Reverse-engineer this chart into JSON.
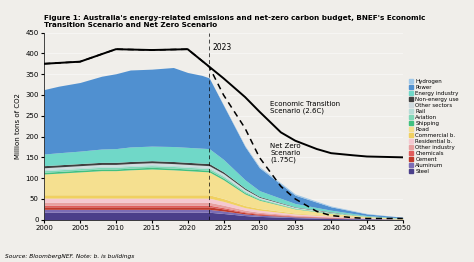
{
  "title": "Figure 1: Australia's energy-related emissions and net-zero carbon budget, BNEF's Economic\nTransition Scenario and Net Zero Scenario",
  "ylabel": "Million tons of CO2",
  "source": "Source: BloombergNEF. Note: b. is buildings",
  "xlim": [
    2000,
    2050
  ],
  "ylim": [
    0,
    450
  ],
  "yticks": [
    0,
    50,
    100,
    150,
    200,
    250,
    300,
    350,
    400,
    450
  ],
  "xticks": [
    2000,
    2005,
    2010,
    2015,
    2020,
    2025,
    2030,
    2035,
    2040,
    2045,
    2050
  ],
  "annotation_2023": "2023",
  "annotation_econ": "Economic Transition\nScenario (2.6C)",
  "annotation_nz": "Net Zero\nScenario\n(1.75C)",
  "bg_color": "#f0eeea",
  "layers_order_bottom_to_top": [
    {
      "name": "Steel",
      "color": "#4a3f8a"
    },
    {
      "name": "Aluminum",
      "color": "#7b6db5"
    },
    {
      "name": "Cement",
      "color": "#c0392b"
    },
    {
      "name": "Chemicals",
      "color": "#e05c5c"
    },
    {
      "name": "Other industry",
      "color": "#e8a0a0"
    },
    {
      "name": "Residential b.",
      "color": "#f5c8d0"
    },
    {
      "name": "Commercial b.",
      "color": "#f0d060"
    },
    {
      "name": "Road",
      "color": "#f5e090"
    },
    {
      "name": "Shipping",
      "color": "#40c080"
    },
    {
      "name": "Aviation",
      "color": "#80d8b8"
    },
    {
      "name": "Rail",
      "color": "#b8ddd8"
    },
    {
      "name": "Other sectors",
      "color": "#d0dce0"
    },
    {
      "name": "Non-energy use",
      "color": "#404040"
    },
    {
      "name": "Energy industry",
      "color": "#70d8c8"
    },
    {
      "name": "Power",
      "color": "#5090d0"
    },
    {
      "name": "Hydrogen",
      "color": "#a0c8e8"
    }
  ],
  "x_stack": [
    2000,
    2002,
    2005,
    2008,
    2010,
    2012,
    2015,
    2018,
    2020,
    2022,
    2023,
    2025,
    2028,
    2030,
    2035,
    2040,
    2045,
    2050
  ],
  "stack_data": {
    "Steel": [
      18,
      18,
      18,
      18,
      18,
      18,
      18,
      18,
      18,
      18,
      18,
      15,
      10,
      8,
      5,
      3,
      2,
      1
    ],
    "Aluminum": [
      7,
      7,
      7,
      7,
      7,
      7,
      7,
      7,
      7,
      7,
      7,
      6,
      4,
      3,
      2,
      1,
      1,
      0
    ],
    "Cement": [
      6,
      6,
      6,
      6,
      6,
      6,
      6,
      6,
      6,
      6,
      6,
      5,
      3,
      2,
      1,
      1,
      0,
      0
    ],
    "Chemicals": [
      4,
      4,
      4,
      4,
      4,
      4,
      4,
      4,
      4,
      4,
      4,
      3,
      2,
      2,
      1,
      1,
      0,
      0
    ],
    "Other industry": [
      7,
      7,
      7,
      7,
      7,
      7,
      7,
      7,
      7,
      7,
      7,
      6,
      4,
      3,
      2,
      1,
      1,
      0
    ],
    "Residential b.": [
      10,
      10,
      10,
      10,
      10,
      10,
      10,
      10,
      10,
      10,
      10,
      9,
      6,
      5,
      3,
      2,
      1,
      0
    ],
    "Commercial b.": [
      8,
      8,
      8,
      8,
      8,
      8,
      8,
      8,
      8,
      8,
      8,
      7,
      5,
      4,
      2,
      1,
      0,
      0
    ],
    "Road": [
      50,
      52,
      55,
      58,
      58,
      60,
      62,
      60,
      58,
      56,
      55,
      45,
      28,
      20,
      10,
      5,
      3,
      2
    ],
    "Shipping": [
      4,
      4,
      4,
      4,
      4,
      4,
      4,
      4,
      4,
      4,
      4,
      4,
      3,
      2,
      1,
      1,
      0,
      0
    ],
    "Aviation": [
      4,
      4,
      4,
      4,
      4,
      4,
      4,
      4,
      4,
      4,
      4,
      4,
      3,
      2,
      1,
      1,
      0,
      0
    ],
    "Rail": [
      3,
      3,
      3,
      3,
      3,
      3,
      3,
      3,
      3,
      3,
      3,
      3,
      2,
      1,
      1,
      0,
      0,
      0
    ],
    "Other sectors": [
      4,
      4,
      4,
      4,
      4,
      4,
      4,
      4,
      4,
      4,
      4,
      4,
      3,
      2,
      1,
      1,
      0,
      0
    ],
    "Non-energy use": [
      5,
      5,
      5,
      5,
      5,
      5,
      5,
      5,
      5,
      5,
      5,
      4,
      3,
      2,
      1,
      1,
      0,
      0
    ],
    "Energy industry": [
      28,
      29,
      30,
      32,
      33,
      35,
      35,
      36,
      36,
      36,
      36,
      30,
      20,
      14,
      8,
      4,
      2,
      1
    ],
    "Power": [
      155,
      160,
      165,
      175,
      180,
      185,
      185,
      190,
      180,
      175,
      170,
      130,
      80,
      55,
      20,
      8,
      4,
      2
    ],
    "Hydrogen": [
      0,
      0,
      0,
      0,
      0,
      0,
      0,
      0,
      0,
      0,
      0,
      1,
      2,
      3,
      3,
      2,
      1,
      0
    ]
  },
  "econ_line_x": [
    2000,
    2005,
    2010,
    2015,
    2020,
    2023,
    2025,
    2028,
    2030,
    2033,
    2035,
    2038,
    2040,
    2043,
    2045,
    2050
  ],
  "econ_line_y": [
    375,
    380,
    410,
    408,
    410,
    368,
    340,
    295,
    260,
    210,
    190,
    170,
    160,
    155,
    152,
    150
  ],
  "nz_line_x": [
    2000,
    2005,
    2010,
    2015,
    2020,
    2023,
    2025,
    2028,
    2030,
    2033,
    2035,
    2038,
    2040,
    2043,
    2045,
    2050
  ],
  "nz_line_y": [
    375,
    380,
    410,
    408,
    410,
    368,
    300,
    220,
    150,
    80,
    50,
    20,
    10,
    5,
    3,
    3
  ]
}
